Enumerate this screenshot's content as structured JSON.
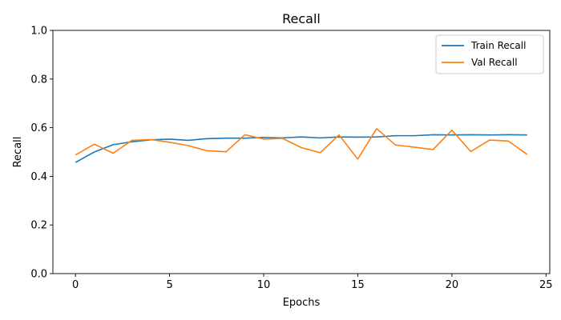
{
  "chart_data": {
    "type": "line",
    "title": "Recall",
    "xlabel": "Epochs",
    "ylabel": "Recall",
    "xlim": [
      -1.2,
      25.2
    ],
    "ylim": [
      0.0,
      1.0
    ],
    "xticks": [
      0,
      5,
      10,
      15,
      20,
      25
    ],
    "yticks": [
      0.0,
      0.2,
      0.4,
      0.6,
      0.8,
      1.0
    ],
    "xtick_labels": [
      "0",
      "5",
      "10",
      "15",
      "20",
      "25"
    ],
    "ytick_labels": [
      "0.0",
      "0.2",
      "0.4",
      "0.6",
      "0.8",
      "1.0"
    ],
    "grid": false,
    "legend_position": "top-right",
    "x": [
      0,
      1,
      2,
      3,
      4,
      5,
      6,
      7,
      8,
      9,
      10,
      11,
      12,
      13,
      14,
      15,
      16,
      17,
      18,
      19,
      20,
      21,
      22,
      23,
      24
    ],
    "series": [
      {
        "name": "Train Recall",
        "color": "#1f77b4",
        "values": [
          0.457,
          0.5,
          0.53,
          0.542,
          0.55,
          0.553,
          0.548,
          0.555,
          0.557,
          0.557,
          0.56,
          0.558,
          0.562,
          0.558,
          0.562,
          0.561,
          0.562,
          0.567,
          0.567,
          0.571,
          0.57,
          0.571,
          0.57,
          0.571,
          0.57
        ]
      },
      {
        "name": "Val Recall",
        "color": "#ff7f0e",
        "values": [
          0.488,
          0.532,
          0.495,
          0.548,
          0.551,
          0.54,
          0.526,
          0.505,
          0.501,
          0.571,
          0.553,
          0.556,
          0.518,
          0.497,
          0.57,
          0.471,
          0.596,
          0.529,
          0.52,
          0.51,
          0.59,
          0.502,
          0.549,
          0.545,
          0.49
        ]
      }
    ]
  }
}
